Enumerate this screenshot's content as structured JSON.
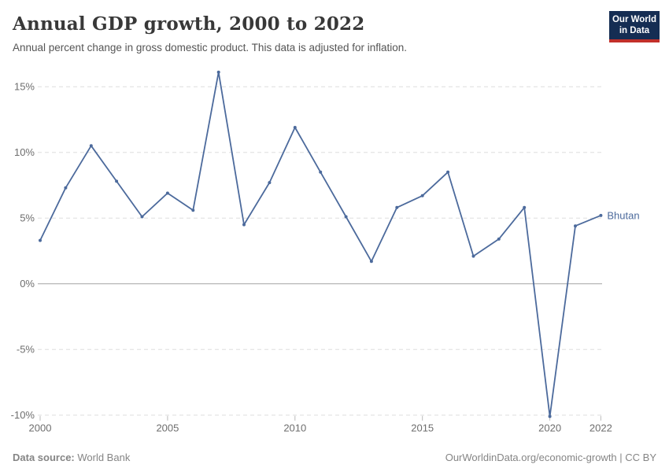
{
  "header": {
    "title": "Annual GDP growth, 2000 to 2022",
    "subtitle": "Annual percent change in gross domestic product. This data is adjusted for inflation.",
    "logo": {
      "line1": "Our World",
      "line2": "in Data",
      "bg_color": "#152d53",
      "bar_color": "#c2302a"
    }
  },
  "footer": {
    "datasource_label": "Data source:",
    "datasource_value": " World Bank",
    "right_text": "OurWorldinData.org/economic-growth | CC BY"
  },
  "chart_data": {
    "type": "line",
    "title": "Annual GDP growth, 2000 to 2022",
    "subtitle": "Annual percent change in gross domestic product. This data is adjusted for inflation.",
    "xlabel": "",
    "ylabel": "",
    "x": [
      2000,
      2001,
      2002,
      2003,
      2004,
      2005,
      2006,
      2007,
      2008,
      2009,
      2010,
      2011,
      2012,
      2013,
      2014,
      2015,
      2016,
      2017,
      2018,
      2019,
      2020,
      2021,
      2022
    ],
    "series": [
      {
        "name": "Bhutan",
        "color": "#4c6a9c",
        "values": [
          3.3,
          7.3,
          10.5,
          7.8,
          5.1,
          6.9,
          5.6,
          16.1,
          4.5,
          7.7,
          11.9,
          8.5,
          5.1,
          1.7,
          5.8,
          6.7,
          8.5,
          2.1,
          3.4,
          5.8,
          -10.1,
          4.4,
          5.2
        ]
      }
    ],
    "end_label": "Bhutan",
    "xticks": {
      "values": [
        2000,
        2005,
        2010,
        2015,
        2020,
        2022
      ],
      "labels": [
        "2000",
        "2005",
        "2010",
        "2015",
        "2020",
        "2022"
      ]
    },
    "yticks": {
      "values": [
        15,
        10,
        5,
        0,
        -5,
        -10
      ],
      "labels": [
        "15%",
        "10%",
        "5%",
        "0%",
        "-5%",
        "-10%"
      ]
    },
    "ylim": [
      -10.5,
      16.5
    ],
    "xlim": [
      2000,
      2022
    ],
    "grid": "horizontal-dashed",
    "zero_line": true,
    "legend_position": "end-of-line",
    "colors": {
      "grid": "#dedede",
      "zero_line": "#a3a3a3",
      "axis_text": "#6e6e6e",
      "tick": "#bbbbbb"
    }
  }
}
